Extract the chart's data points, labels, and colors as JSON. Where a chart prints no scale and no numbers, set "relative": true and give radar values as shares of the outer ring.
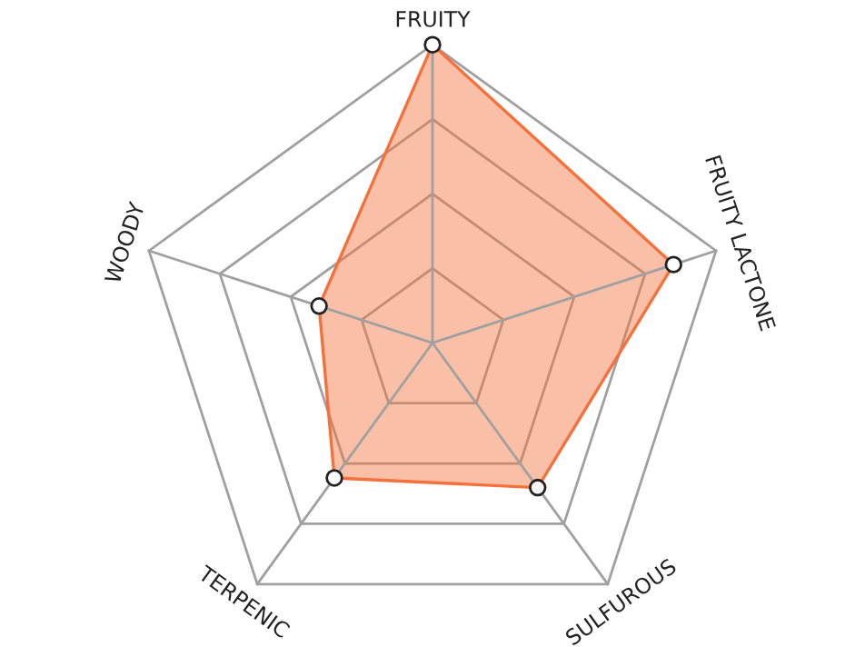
{
  "chart_data": {
    "type": "radar",
    "relative": true,
    "categories": [
      "FRUITY",
      "FRUITY LACTONE",
      "SULFUROUS",
      "TERPENIC",
      "WOODY"
    ],
    "series": [
      {
        "color": "#f4703c",
        "values": [
          1,
          0.85,
          0.6,
          0.56,
          0.4
        ]
      }
    ],
    "marker": "circle",
    "grid": true
  }
}
